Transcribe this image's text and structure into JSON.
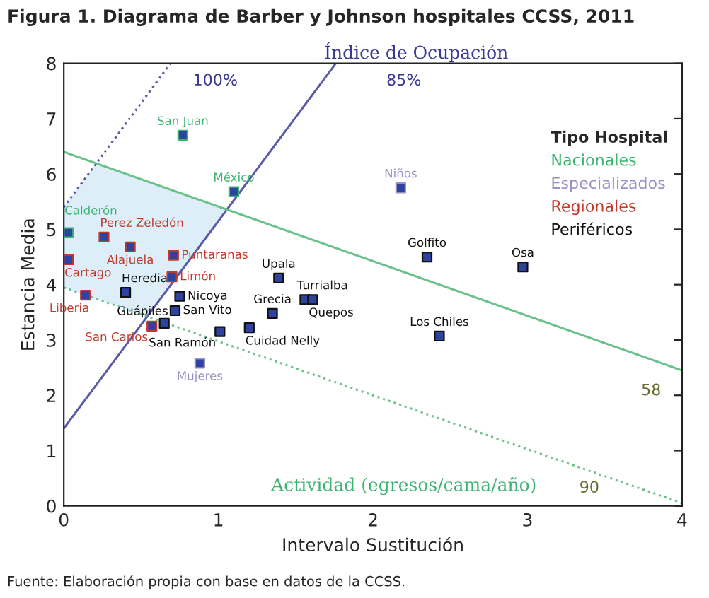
{
  "chart_data": {
    "type": "scatter",
    "title": "Figura 1. Diagrama de Barber y Johnson hospitales CCSS, 2011",
    "xlabel": "Intervalo Sustitución",
    "ylabel": "Estancia Media",
    "legend_title": "Tipo Hospital",
    "xlim": [
      0,
      4
    ],
    "xticks": [
      0,
      1,
      2,
      3,
      4
    ],
    "ylim": [
      0,
      8
    ],
    "yticks": [
      0,
      1,
      2,
      3,
      4,
      5,
      6,
      7,
      8
    ],
    "grid": false,
    "legend": "upper right",
    "series": [
      {
        "type": "line",
        "color": "#5a5aa8",
        "line_style": "solid",
        "marker": "none",
        "x": [
          0,
          1.76
        ],
        "values": [
          1.4,
          8
        ]
      },
      {
        "type": "line",
        "color": "#5a5aa8",
        "line_style": "dotted",
        "marker": "none",
        "x": [
          0,
          0.69
        ],
        "values": [
          5.4,
          8
        ]
      },
      {
        "type": "line",
        "color": "#6cc08c",
        "line_style": "solid",
        "marker": "none",
        "x": [
          0,
          4
        ],
        "values": [
          6.4,
          2.45
        ]
      },
      {
        "type": "line",
        "color": "#6cc08c",
        "line_style": "dotted",
        "marker": "none",
        "x": [
          0,
          4
        ],
        "values": [
          3.95,
          0.05
        ]
      },
      {
        "name": "Nacionales",
        "color": "#3cb371",
        "marker": "square",
        "x": [
          0.77,
          1.1,
          0.03
        ],
        "values": [
          6.7,
          5.68,
          4.94
        ],
        "value_labels": [
          "San Juan",
          "México",
          "Calderón"
        ]
      },
      {
        "name": "Especializados",
        "color": "#9890c8",
        "marker": "square",
        "x": [
          2.18,
          0.88
        ],
        "values": [
          5.75,
          2.58
        ],
        "value_labels": [
          "Niños",
          "Mujeres"
        ]
      },
      {
        "name": "Regionales",
        "color": "#c0392b",
        "marker": "square",
        "x": [
          0.26,
          0.43,
          0.71,
          0.03,
          0.7,
          0.14,
          0.57
        ],
        "values": [
          4.86,
          4.68,
          4.53,
          4.45,
          4.14,
          3.81,
          3.25
        ],
        "value_labels": [
          "Perez Zeledón",
          "Alajuela",
          "Puntaranas",
          "Cartago",
          "Limón",
          "Liberia",
          "San Carlos"
        ]
      },
      {
        "name": "Periféricos",
        "color": "#111111",
        "marker": "square",
        "x": [
          0.4,
          0.75,
          0.72,
          0.65,
          1.2,
          1.01,
          1.39,
          1.56,
          1.35,
          1.61,
          2.35,
          2.97,
          2.43
        ],
        "values": [
          3.86,
          3.79,
          3.53,
          3.3,
          3.22,
          3.15,
          4.12,
          3.73,
          3.48,
          3.73,
          4.5,
          4.32,
          3.07
        ],
        "value_labels": [
          "Heredia",
          "Nicoya",
          "San Vito",
          "Guápiles",
          "Cuidad Nelly",
          "San Ramón",
          "Upala",
          "Turrialba",
          "Grecia",
          "Quepos",
          "Golfito",
          "Osa",
          "Los Chiles"
        ]
      }
    ],
    "annotations": [
      "Índice de Ocupación",
      "100%",
      "85%",
      "58",
      "90",
      "Actividad (egresos/cama/año)",
      "Fuente: Elaboración propia con base en datos de la CCSS."
    ]
  }
}
